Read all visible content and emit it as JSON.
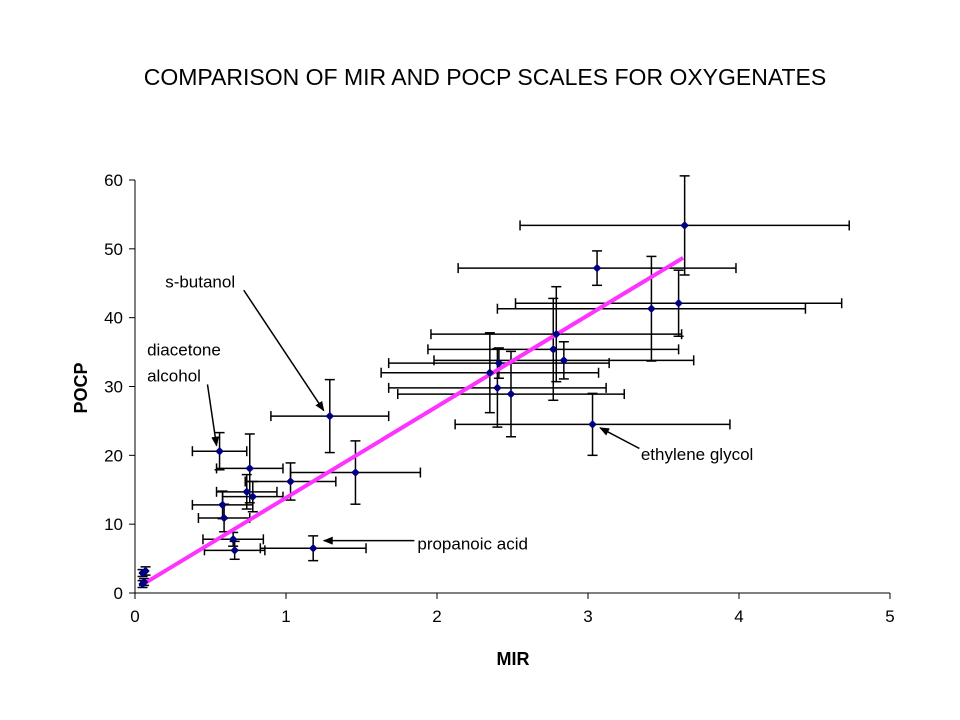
{
  "chart_data": {
    "type": "scatter",
    "title": "COMPARISON OF MIR AND POCP SCALES FOR OXYGENATES",
    "xlabel": "MIR",
    "ylabel": "POCP",
    "xlim": [
      0,
      5
    ],
    "ylim": [
      0,
      60
    ],
    "xticks": [
      0,
      1,
      2,
      3,
      4,
      5
    ],
    "yticks": [
      0,
      10,
      20,
      30,
      40,
      50,
      60
    ],
    "grid": false,
    "colors": {
      "points": "#000080",
      "fit_line": "#ff33ff",
      "error_bars": "#000000"
    },
    "points": [
      {
        "x": 0.05,
        "y": 1.3,
        "xerr": 0,
        "yerr": 0.5
      },
      {
        "x": 0.06,
        "y": 1.6,
        "xerr": 0,
        "yerr": 0.5
      },
      {
        "x": 0.07,
        "y": 3.2,
        "xerr": 0,
        "yerr": 0.6
      },
      {
        "x": 0.05,
        "y": 2.9,
        "xerr": 0,
        "yerr": 0.5
      },
      {
        "x": 0.56,
        "y": 20.6,
        "xerr": 0.18,
        "yerr": 2.7
      },
      {
        "x": 0.76,
        "y": 18.1,
        "xerr": 0.22,
        "yerr": 5.0
      },
      {
        "x": 0.74,
        "y": 14.7,
        "xerr": 0.2,
        "yerr": 2.5
      },
      {
        "x": 0.78,
        "y": 14.0,
        "xerr": 0.2,
        "yerr": 2.2
      },
      {
        "x": 0.58,
        "y": 12.8,
        "xerr": 0.2,
        "yerr": 2.0
      },
      {
        "x": 0.59,
        "y": 10.9,
        "xerr": 0.17,
        "yerr": 2.0
      },
      {
        "x": 0.65,
        "y": 7.8,
        "xerr": 0.2,
        "yerr": 1.0
      },
      {
        "x": 0.66,
        "y": 6.2,
        "xerr": 0.2,
        "yerr": 1.3
      },
      {
        "x": 1.03,
        "y": 16.2,
        "xerr": 0.3,
        "yerr": 2.7
      },
      {
        "x": 1.18,
        "y": 6.5,
        "xerr": 0.35,
        "yerr": 1.8
      },
      {
        "x": 1.29,
        "y": 25.7,
        "xerr": 0.39,
        "yerr": 5.3
      },
      {
        "x": 1.46,
        "y": 17.5,
        "xerr": 0.43,
        "yerr": 4.6
      },
      {
        "x": 2.35,
        "y": 32.0,
        "xerr": 0.72,
        "yerr": 5.8
      },
      {
        "x": 2.41,
        "y": 33.4,
        "xerr": 0.73,
        "yerr": 2.2
      },
      {
        "x": 2.4,
        "y": 29.8,
        "xerr": 0.72,
        "yerr": 5.7
      },
      {
        "x": 2.49,
        "y": 28.9,
        "xerr": 0.75,
        "yerr": 6.2
      },
      {
        "x": 2.77,
        "y": 35.4,
        "xerr": 0.83,
        "yerr": 7.4
      },
      {
        "x": 2.79,
        "y": 37.6,
        "xerr": 0.83,
        "yerr": 6.9
      },
      {
        "x": 2.84,
        "y": 33.8,
        "xerr": 0.86,
        "yerr": 2.7
      },
      {
        "x": 3.03,
        "y": 24.5,
        "xerr": 0.91,
        "yerr": 4.5
      },
      {
        "x": 3.06,
        "y": 47.2,
        "xerr": 0.92,
        "yerr": 2.5
      },
      {
        "x": 3.42,
        "y": 41.3,
        "xerr": 1.02,
        "yerr": 7.6
      },
      {
        "x": 3.6,
        "y": 42.1,
        "xerr": 1.08,
        "yerr": 4.8
      },
      {
        "x": 3.64,
        "y": 53.4,
        "xerr": 1.09,
        "yerr": 7.2
      }
    ],
    "fit_line": {
      "x1": 0.07,
      "y1": 1.5,
      "x2": 3.63,
      "y2": 48.7
    },
    "annotations": [
      {
        "text": "s-butanol",
        "text_x": 0.2,
        "text_y": 44.4,
        "arrow_from": [
          0.72,
          44.0
        ],
        "arrow_to": [
          1.25,
          26.5
        ]
      },
      {
        "text": "diacetone",
        "text_x": 0.08,
        "text_y": 34.5,
        "arrow_from": null,
        "arrow_to": null
      },
      {
        "text": "alcohol",
        "text_x": 0.08,
        "text_y": 30.7,
        "arrow_from": [
          0.48,
          30.3
        ],
        "arrow_to": [
          0.54,
          21.4
        ]
      },
      {
        "text": "ethylene glycol",
        "text_x": 3.35,
        "text_y": 19.3,
        "arrow_from": [
          3.34,
          21.0
        ],
        "arrow_to": [
          3.08,
          24.0
        ]
      },
      {
        "text": "propanoic acid",
        "text_x": 1.87,
        "text_y": 6.3,
        "arrow_from": [
          1.85,
          7.6
        ],
        "arrow_to": [
          1.25,
          7.6
        ]
      }
    ]
  }
}
